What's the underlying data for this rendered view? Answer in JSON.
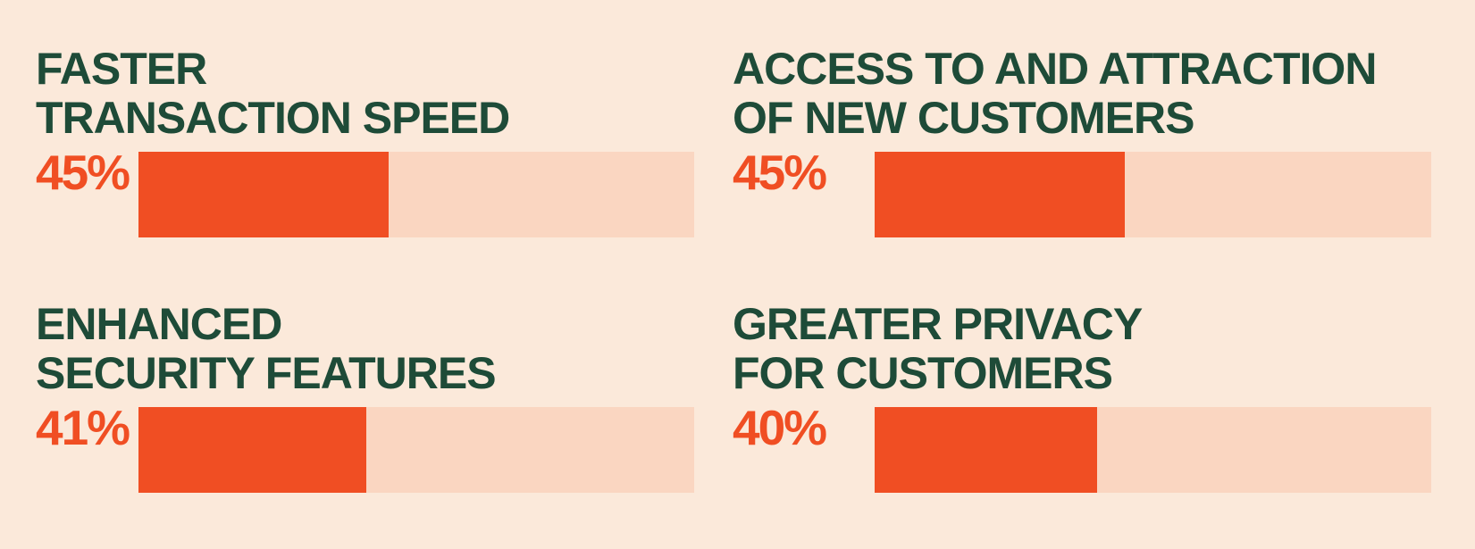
{
  "colors": {
    "background": "#FBE9DA",
    "heading_text": "#1E4B38",
    "value_text": "#F04E23",
    "bar_fill": "#F04E23",
    "bar_track": "#FAD6C1"
  },
  "stats": [
    {
      "title": "FASTER TRANSACTION SPEED",
      "title_lines": [
        "FASTER",
        "TRANSACTION SPEED"
      ],
      "label": "45%",
      "value": 45
    },
    {
      "title": "ACCESS TO AND ATTRACTION OF NEW CUSTOMERS",
      "title_lines": [
        "ACCESS TO AND ATTRACTION",
        "OF NEW CUSTOMERS"
      ],
      "label": "45%",
      "value": 45
    },
    {
      "title": "ENHANCED SECURITY FEATURES",
      "title_lines": [
        "ENHANCED",
        "SECURITY FEATURES"
      ],
      "label": "41%",
      "value": 41
    },
    {
      "title": "GREATER PRIVACY FOR CUSTOMERS",
      "title_lines": [
        "GREATER PRIVACY",
        "FOR CUSTOMERS"
      ],
      "label": "40%",
      "value": 40
    }
  ],
  "chart_data": {
    "type": "bar",
    "orientation": "horizontal",
    "title": "",
    "categories": [
      "Faster transaction speed",
      "Access to and attraction of new customers",
      "Enhanced security features",
      "Greater privacy for customers"
    ],
    "values": [
      45,
      45,
      41,
      40
    ],
    "value_labels": [
      "45%",
      "45%",
      "41%",
      "40%"
    ],
    "unit": "%",
    "xlim": [
      0,
      100
    ],
    "grid": false,
    "legend": false,
    "layout": "2x2 grid of single-bar percentage stats, value label left of each bar"
  }
}
